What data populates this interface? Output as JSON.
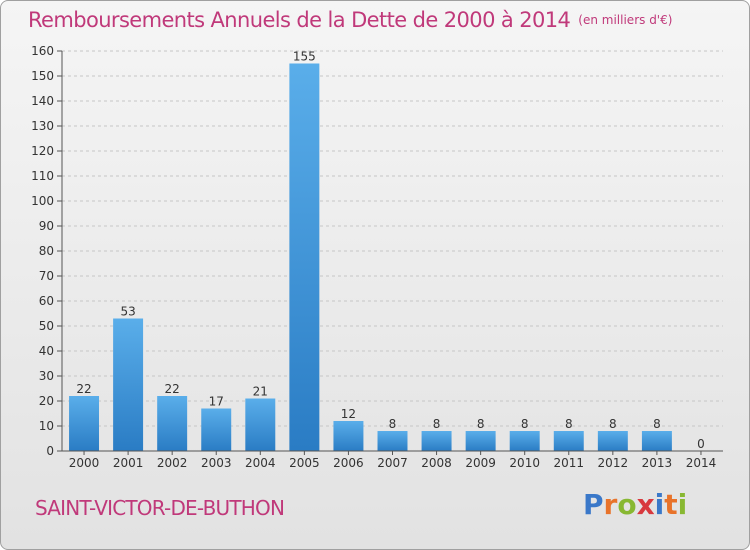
{
  "title": "Remboursements Annuels de la Dette de 2000 à 2014",
  "unit": "(en milliers d'€)",
  "commune": "SAINT-VICTOR-DE-BUTHON",
  "logo": {
    "text": "Proxiti",
    "letters": [
      {
        "ch": "P",
        "color": "#3a78c9"
      },
      {
        "ch": "r",
        "color": "#e8732a"
      },
      {
        "ch": "o",
        "color": "#88b832"
      },
      {
        "ch": "x",
        "color": "#d8393e"
      },
      {
        "ch": "i",
        "color": "#3a78c9"
      },
      {
        "ch": "t",
        "color": "#e8732a"
      },
      {
        "ch": "i",
        "color": "#88b832"
      }
    ]
  },
  "colors": {
    "title": "#c0397a",
    "bar_top": "#5aaeea",
    "bar_bottom": "#2a7cc4",
    "grid": "#c6c6c6",
    "axis": "#555555"
  },
  "chart_data": {
    "type": "bar",
    "title": "Remboursements Annuels de la Dette de 2000 à 2014",
    "ylabel": "en milliers d'€",
    "xlabel": "",
    "grid": true,
    "ylim": [
      0,
      160
    ],
    "ytick_step": 10,
    "categories": [
      "2000",
      "2001",
      "2002",
      "2003",
      "2004",
      "2005",
      "2006",
      "2007",
      "2008",
      "2009",
      "2010",
      "2011",
      "2012",
      "2013",
      "2014"
    ],
    "values": [
      22,
      53,
      22,
      17,
      21,
      155,
      12,
      8,
      8,
      8,
      8,
      8,
      8,
      8,
      0
    ]
  }
}
